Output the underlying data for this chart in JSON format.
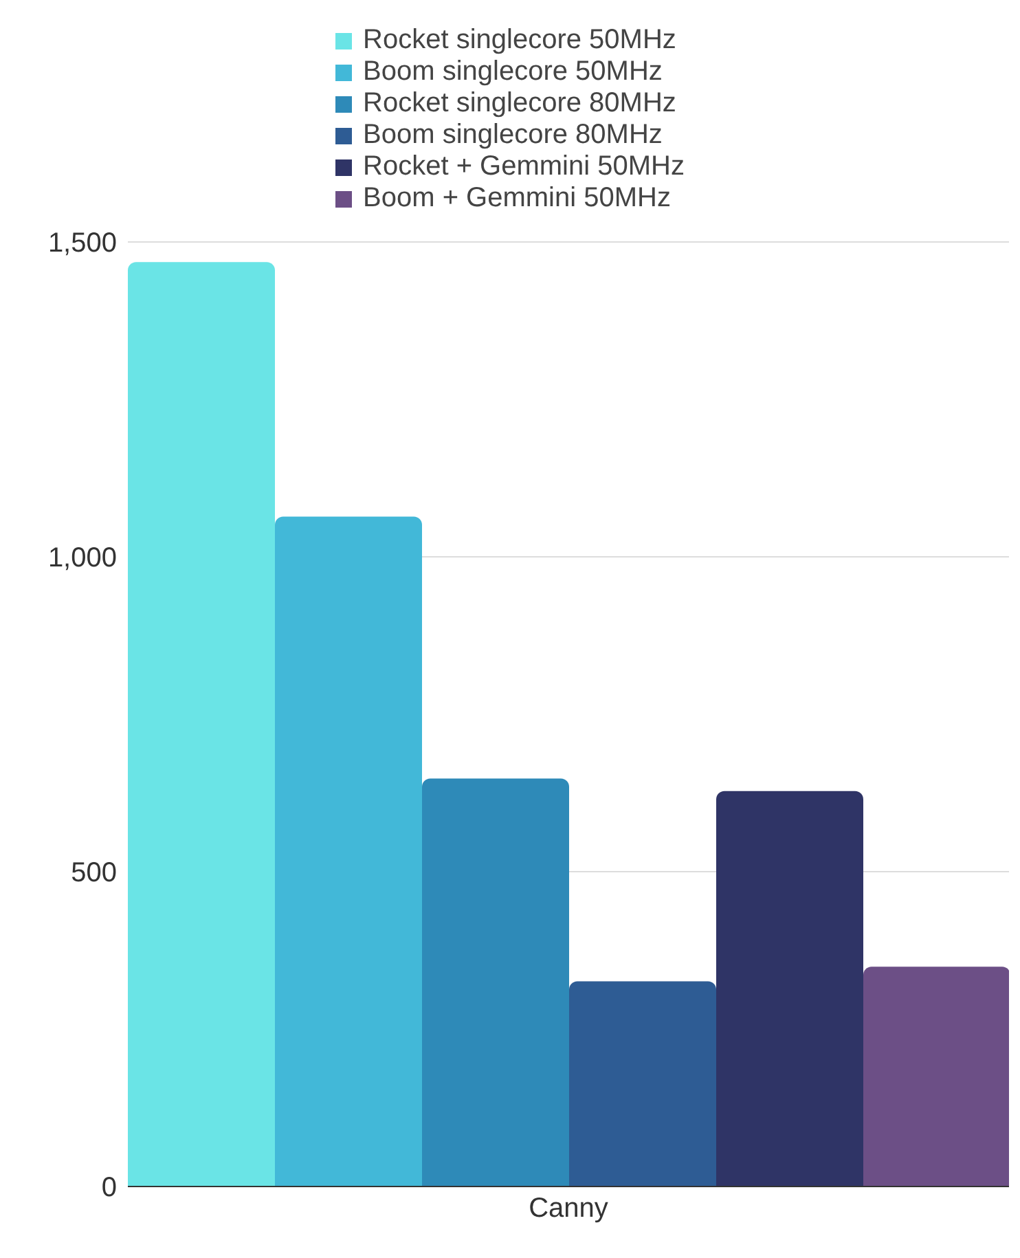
{
  "chart_data": {
    "type": "bar",
    "categories": [
      "Canny"
    ],
    "series": [
      {
        "name": "Rocket singlecore 50MHz",
        "color": "#6ae4e6",
        "values": [
          1468
        ]
      },
      {
        "name": "Boom singlecore 50MHz",
        "color": "#42b8d8",
        "values": [
          1064
        ]
      },
      {
        "name": "Rocket singlecore 80MHz",
        "color": "#2e8ab8",
        "values": [
          648
        ]
      },
      {
        "name": "Boom singlecore 80MHz",
        "color": "#2e5c94",
        "values": [
          326
        ]
      },
      {
        "name": "Rocket + Gemmini 50MHz",
        "color": "#2f3466",
        "values": [
          628
        ]
      },
      {
        "name": "Boom + Gemmini 50MHz",
        "color": "#6c4f86",
        "values": [
          349
        ]
      }
    ],
    "ylim": [
      0,
      1500
    ],
    "yticks": [
      0,
      500,
      {
        "value": 1000,
        "label": "1,000"
      },
      {
        "value": 1500,
        "label": "1,500"
      }
    ],
    "grid": "y",
    "legend": "top"
  }
}
